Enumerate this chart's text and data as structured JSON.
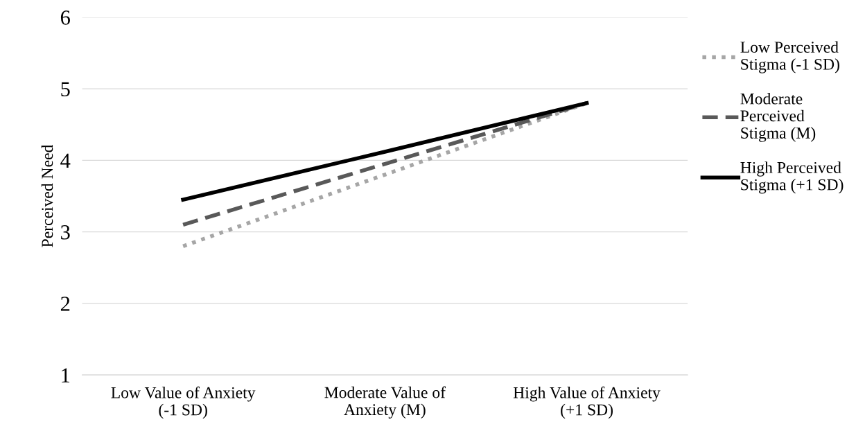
{
  "chart_data": {
    "type": "line",
    "ylabel": "Perceived Need",
    "categories": [
      "Low Value of Anxiety\n(-1 SD)",
      "Moderate Value of\nAnxiety (M)",
      "High Value of Anxiety\n(+1 SD)"
    ],
    "series": [
      {
        "name": "Low Perceived\nStigma (-1 SD)",
        "color": "#a6a6a6",
        "line_style": "dotted",
        "values": [
          2.8,
          3.8,
          4.8
        ]
      },
      {
        "name": "Moderate\nPerceived\nStigma (M)",
        "color": "#595959",
        "line_style": "dashed",
        "values": [
          3.1,
          3.95,
          4.8
        ]
      },
      {
        "name": "High Perceived\nStigma (+1 SD)",
        "color": "#000000",
        "line_style": "solid",
        "values": [
          3.45,
          4.12,
          4.8
        ]
      }
    ],
    "ylim": [
      1,
      6
    ],
    "yticks": [
      1,
      2,
      3,
      4,
      5,
      6
    ],
    "grid": "y",
    "legend": "right",
    "marker": "none"
  }
}
